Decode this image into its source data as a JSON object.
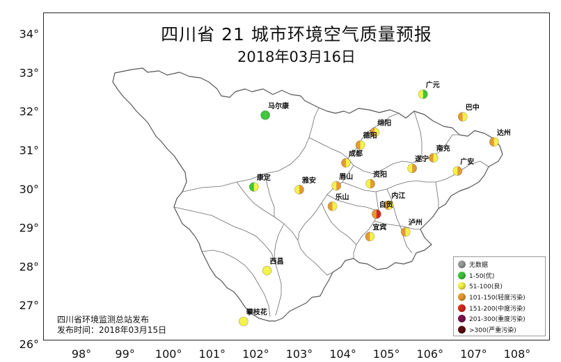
{
  "title": {
    "line1": "四川省 21 城市环境空气质量预报",
    "line2": "2018年03月16日"
  },
  "axes": {
    "x_ticks": [
      "98°",
      "99°",
      "100°",
      "101°",
      "102°",
      "103°",
      "104°",
      "105°",
      "106°",
      "107°",
      "108°"
    ],
    "y_ticks": [
      "34°",
      "33°",
      "32°",
      "31°",
      "30°",
      "29°",
      "28°",
      "27°",
      "26°"
    ]
  },
  "colors": {
    "none": "#9a9a9a",
    "excellent": "#3fc43a",
    "good": "#f4f24a",
    "light": "#e59a2f",
    "medium": "#d42a1c",
    "heavy": "#7a1450",
    "severe": "#5a0d12",
    "boundary": "#555555"
  },
  "cities": [
    {
      "name": "广元",
      "lon": 105.84,
      "lat": 32.44,
      "left": "good",
      "right": "excellent"
    },
    {
      "name": "巴中",
      "lon": 106.75,
      "lat": 31.86,
      "left": "light",
      "right": "good"
    },
    {
      "name": "马尔康",
      "lon": 102.22,
      "lat": 31.9,
      "left": "excellent",
      "right": "excellent"
    },
    {
      "name": "绵阳",
      "lon": 104.73,
      "lat": 31.46,
      "left": "light",
      "right": "good"
    },
    {
      "name": "达州",
      "lon": 107.47,
      "lat": 31.21,
      "left": "light",
      "right": "good"
    },
    {
      "name": "德阳",
      "lon": 104.4,
      "lat": 31.13,
      "left": "light",
      "right": "good"
    },
    {
      "name": "南充",
      "lon": 106.08,
      "lat": 30.8,
      "left": "light",
      "right": "good"
    },
    {
      "name": "成都",
      "lon": 104.07,
      "lat": 30.67,
      "left": "light",
      "right": "good"
    },
    {
      "name": "遂宁",
      "lon": 105.59,
      "lat": 30.53,
      "left": "good",
      "right": "light"
    },
    {
      "name": "广安",
      "lon": 106.63,
      "lat": 30.46,
      "left": "good",
      "right": "light"
    },
    {
      "name": "资阳",
      "lon": 104.63,
      "lat": 30.13,
      "left": "good",
      "right": "light"
    },
    {
      "name": "眉山",
      "lon": 103.85,
      "lat": 30.08,
      "left": "good",
      "right": "light"
    },
    {
      "name": "雅安",
      "lon": 103.0,
      "lat": 29.98,
      "left": "good",
      "right": "light"
    },
    {
      "name": "康定",
      "lon": 101.96,
      "lat": 30.05,
      "left": "excellent",
      "right": "good"
    },
    {
      "name": "内江",
      "lon": 105.05,
      "lat": 29.58,
      "left": "light",
      "right": "good"
    },
    {
      "name": "乐山",
      "lon": 103.76,
      "lat": 29.55,
      "left": "light",
      "right": "good"
    },
    {
      "name": "自贡",
      "lon": 104.77,
      "lat": 29.35,
      "left": "light",
      "right": "medium"
    },
    {
      "name": "宜宾",
      "lon": 104.62,
      "lat": 28.77,
      "left": "light",
      "right": "good"
    },
    {
      "name": "泸州",
      "lon": 105.44,
      "lat": 28.89,
      "left": "light",
      "right": "good"
    },
    {
      "name": "西昌",
      "lon": 102.26,
      "lat": 27.89,
      "left": "good",
      "right": "good"
    },
    {
      "name": "攀枝花",
      "lon": 101.72,
      "lat": 26.58,
      "left": "good",
      "right": "good"
    }
  ],
  "legend": [
    {
      "label": "无数据",
      "color_key": "none"
    },
    {
      "label": "1-50(优)",
      "color_key": "excellent"
    },
    {
      "label": "51-100(良)",
      "color_key": "good"
    },
    {
      "label": "101-150(轻度污染)",
      "color_key": "light"
    },
    {
      "label": "151-200(中度污染)",
      "color_key": "medium"
    },
    {
      "label": "201-300(重度污染)",
      "color_key": "heavy"
    },
    {
      "label": ">300(严重污染)",
      "color_key": "severe"
    }
  ],
  "source": {
    "line1": "四川省环境监测总站发布",
    "line2": "发布时间：2018年03月15日"
  }
}
